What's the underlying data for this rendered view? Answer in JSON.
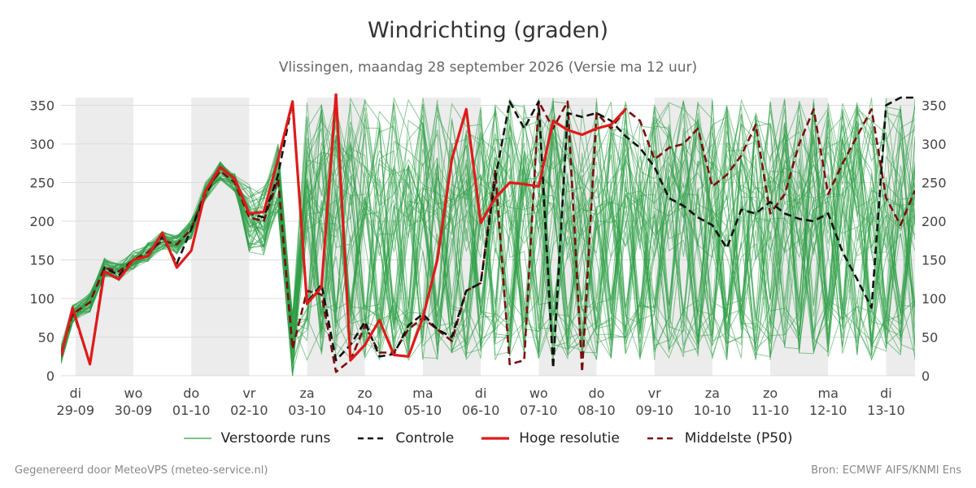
{
  "colors": {
    "ensemble": "#2e9e45",
    "control": "#111111",
    "hires": "#e01a1a",
    "median": "#7a0f0f",
    "shade": "#ececec",
    "grid": "#dcdcdc"
  },
  "header": {
    "title": "Windrichting (graden)",
    "subtitle": "Vlissingen, maandag 28 september 2026 (Versie ma 12 uur)"
  },
  "legend": [
    {
      "label": "Verstoorde runs",
      "style": "ensemble"
    },
    {
      "label": "Controle",
      "style": "control"
    },
    {
      "label": "Hoge resolutie",
      "style": "hires"
    },
    {
      "label": "Middelste (P50)",
      "style": "median"
    }
  ],
  "footer": {
    "left": "Gegenereerd door MeteoVPS (meteo-service.nl)",
    "right": "Bron: ECMWF AIFS/KNMI Ens"
  },
  "chart_data": {
    "type": "line",
    "x_unit": "days since 29-09 00:00",
    "xlim": [
      -0.25,
      14.5
    ],
    "ylim": [
      0,
      360
    ],
    "yticks": [
      0,
      50,
      100,
      150,
      200,
      250,
      300,
      350
    ],
    "grid": true,
    "legend_position": "bottom",
    "xticks": [
      {
        "pos": 0,
        "day": "di",
        "date": "29-09"
      },
      {
        "pos": 1,
        "day": "wo",
        "date": "30-09"
      },
      {
        "pos": 2,
        "day": "do",
        "date": "01-10"
      },
      {
        "pos": 3,
        "day": "vr",
        "date": "02-10"
      },
      {
        "pos": 4,
        "day": "za",
        "date": "03-10"
      },
      {
        "pos": 5,
        "day": "zo",
        "date": "04-10"
      },
      {
        "pos": 6,
        "day": "ma",
        "date": "05-10"
      },
      {
        "pos": 7,
        "day": "di",
        "date": "06-10"
      },
      {
        "pos": 8,
        "day": "wo",
        "date": "07-10"
      },
      {
        "pos": 9,
        "day": "do",
        "date": "08-10"
      },
      {
        "pos": 10,
        "day": "vr",
        "date": "09-10"
      },
      {
        "pos": 11,
        "day": "za",
        "date": "10-10"
      },
      {
        "pos": 12,
        "day": "zo",
        "date": "11-10"
      },
      {
        "pos": 13,
        "day": "ma",
        "date": "12-10"
      },
      {
        "pos": 14,
        "day": "di",
        "date": "13-10"
      }
    ],
    "shaded_spans": [
      [
        0,
        1
      ],
      [
        2,
        3
      ],
      [
        4,
        5
      ],
      [
        6,
        7
      ],
      [
        8,
        9
      ],
      [
        10,
        11
      ],
      [
        12,
        13
      ],
      [
        14,
        14.5
      ]
    ],
    "series": [
      {
        "name": "Controle",
        "style": "control",
        "x": [
          -0.25,
          -0.05,
          0.25,
          0.5,
          0.75,
          1.0,
          1.25,
          1.5,
          1.75,
          2.0,
          2.25,
          2.5,
          2.75,
          3.0,
          3.25,
          3.5,
          3.75,
          4.0,
          4.25,
          4.5,
          4.75,
          5.0,
          5.25,
          5.5,
          5.75,
          6.0,
          6.25,
          6.5,
          6.75,
          7.0,
          7.25,
          7.5,
          7.75,
          8.0,
          8.25,
          8.5,
          8.75,
          9.0,
          9.25,
          9.5,
          9.75,
          10.0,
          10.25,
          10.5,
          10.75,
          11.0,
          11.25,
          11.5,
          11.75,
          12.0,
          12.25,
          12.5,
          12.75,
          13.0,
          13.25,
          13.5,
          13.75,
          14.0,
          14.25,
          14.5
        ],
        "values": [
          28,
          85,
          15,
          140,
          130,
          150,
          155,
          180,
          145,
          190,
          235,
          270,
          255,
          210,
          205,
          260,
          355,
          95,
          118,
          20,
          40,
          70,
          25,
          28,
          65,
          80,
          60,
          50,
          110,
          120,
          255,
          355,
          320,
          355,
          10,
          340,
          335,
          340,
          330,
          310,
          295,
          270,
          230,
          220,
          205,
          195,
          165,
          215,
          210,
          225,
          210,
          203,
          200,
          210,
          160,
          125,
          88,
          350,
          360,
          360
        ]
      },
      {
        "name": "Hoge resolutie",
        "style": "hires",
        "x": [
          -0.25,
          -0.05,
          0.25,
          0.5,
          0.75,
          1.0,
          1.25,
          1.5,
          1.75,
          2.0,
          2.25,
          2.5,
          2.75,
          3.0,
          3.25,
          3.5,
          3.75,
          4.0,
          4.25,
          4.5,
          4.75,
          5.0,
          5.25,
          5.5,
          5.75,
          6.0,
          6.25,
          6.5,
          6.75,
          7.0,
          7.25,
          7.5,
          7.75,
          8.0,
          8.25,
          8.5,
          8.75,
          9.0,
          9.25,
          9.5
        ],
        "values": [
          25,
          88,
          15,
          135,
          125,
          150,
          155,
          185,
          140,
          162,
          240,
          270,
          255,
          210,
          212,
          280,
          355,
          93,
          115,
          365,
          20,
          40,
          72,
          27,
          25,
          75,
          150,
          280,
          345,
          198,
          230,
          250,
          248,
          245,
          330,
          318,
          312,
          320,
          325,
          345
        ]
      },
      {
        "name": "Middelste (P50)",
        "style": "median",
        "x": [
          -0.25,
          -0.05,
          0.25,
          0.5,
          0.75,
          1.0,
          1.25,
          1.5,
          1.75,
          2.0,
          2.25,
          2.5,
          2.75,
          3.0,
          3.25,
          3.5,
          3.75,
          4.0,
          4.25,
          4.5,
          4.75,
          5.0,
          5.25,
          5.5,
          5.75,
          6.0,
          6.25,
          6.5,
          6.75,
          7.0,
          7.25,
          7.5,
          7.75,
          8.0,
          8.25,
          8.5,
          8.75,
          9.0,
          9.25,
          9.5,
          9.75,
          10.0,
          10.25,
          10.5,
          10.75,
          11.0,
          11.25,
          11.5,
          11.75,
          12.0,
          12.25,
          12.5,
          12.75,
          13.0,
          13.25,
          13.5,
          13.75,
          14.0,
          14.25,
          14.5
        ],
        "values": [
          28,
          80,
          95,
          140,
          135,
          150,
          160,
          175,
          170,
          190,
          240,
          265,
          250,
          205,
          200,
          255,
          35,
          110,
          105,
          5,
          20,
          65,
          30,
          30,
          60,
          75,
          60,
          45,
          110,
          120,
          265,
          15,
          20,
          355,
          320,
          355,
          5,
          340,
          320,
          345,
          330,
          280,
          295,
          300,
          320,
          245,
          260,
          285,
          325,
          210,
          235,
          300,
          345,
          235,
          275,
          310,
          345,
          230,
          195,
          240
        ]
      }
    ]
  }
}
